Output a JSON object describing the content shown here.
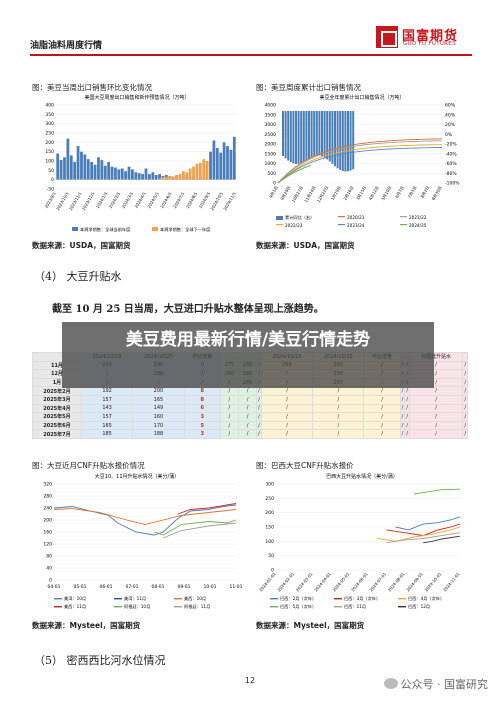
{
  "header": {
    "report_title": "油脂油料周度行情",
    "logo_cn": "国富期货",
    "logo_en": "GUO FU FUTURES"
  },
  "figures": {
    "export_sales": {
      "caption": "图：美豆当周出口销售环比变化情况",
      "source": "数据来源：USDA，国富期货"
    },
    "cumulative_export": {
      "caption": "图：美豆周度累计出口销售情况",
      "source": "数据来源：USDA，国富期货"
    },
    "cnf_us": {
      "caption": "图：大豆近月CNF升贴水报价情况",
      "source": "数据来源：Mysteel，国富期货"
    },
    "cnf_brazil": {
      "caption": "图：巴西大豆CNF升贴水报价",
      "source": "数据来源：Mysteel，国富期货"
    }
  },
  "section4": {
    "heading": "（4）   大豆升贴水",
    "lead": "截至 10 月 25 日当周，大豆进口升贴水整体呈现上涨趋势。"
  },
  "section5": {
    "heading": "（5）   密西西比河水位情况"
  },
  "banner": {
    "text": "美豆费用最新行情/美豆行情走势"
  },
  "table": {
    "header_row": [
      "",
      "2024/10/18",
      "2024/10/25",
      "环比增量",
      "",
      "",
      "",
      "2024/10/18",
      "2024/10/25",
      "环比增量",
      "",
      "",
      "阿根廷升贴水",
      ""
    ],
    "rows": [
      [
        "11月",
        "290",
        "290",
        "0",
        "275",
        "285",
        "/",
        "260",
        "260",
        "/",
        "/",
        "/",
        "/",
        "/"
      ],
      [
        "12月",
        "/",
        "288",
        "/",
        "260",
        "285",
        "/",
        "/",
        "260",
        "/",
        "/",
        "/",
        "/",
        "/"
      ],
      [
        "1月",
        "/",
        "/",
        "/",
        "/",
        "285",
        "/",
        "/",
        "257",
        "/",
        "/",
        "/",
        "/",
        "/"
      ],
      [
        "2025年2月",
        "192",
        "200",
        "8",
        "/",
        "/",
        "/",
        "/",
        "/",
        "/",
        "/",
        "/",
        "/",
        "/"
      ],
      [
        "2025年3月",
        "157",
        "165",
        "8",
        "/",
        "/",
        "/",
        "/",
        "/",
        "/",
        "/",
        "/",
        "/",
        "/"
      ],
      [
        "2025年4月",
        "143",
        "149",
        "6",
        "/",
        "/",
        "/",
        "/",
        "/",
        "/",
        "/",
        "/",
        "/",
        "/"
      ],
      [
        "2025年5月",
        "157",
        "160",
        "3",
        "/",
        "/",
        "/",
        "/",
        "/",
        "/",
        "/",
        "/",
        "/",
        "/"
      ],
      [
        "2025年6月",
        "165",
        "170",
        "5",
        "/",
        "/",
        "/",
        "/",
        "/",
        "/",
        "/",
        "/",
        "/",
        "/"
      ],
      [
        "2025年7月",
        "185",
        "188",
        "3",
        "/",
        "/",
        "/",
        "/",
        "/",
        "/",
        "/",
        "/",
        "/",
        "/"
      ]
    ]
  },
  "chart_data": [
    {
      "type": "bar",
      "title": "美国大豆周度出口销售和新作预售情况（万吨）",
      "legend": [
        "本周净销售：全球当前年度",
        "本周净销售：全球下一年度"
      ],
      "ylim": [
        -50,
        400
      ],
      "yticks": [
        "400",
        "350",
        "300",
        "250",
        "200",
        "150",
        "100",
        "50",
        "0",
        "-50"
      ],
      "xticks": [
        "2023/9/1",
        "2023/10/1",
        "2023/11/1",
        "2023/12/1",
        "2024/1/1",
        "2024/2/1",
        "2024/3/1",
        "2024/4/1",
        "2024/5/1",
        "2024/6/1",
        "2024/7/1",
        "2024/8/1",
        "2024/9/1",
        "2024/10/1",
        "2024/11/1"
      ],
      "series": [
        {
          "name": "本周净销售：全球当前年度",
          "color": "#4a7ebb",
          "values": [
            140,
            105,
            120,
            220,
            130,
            95,
            180,
            150,
            135,
            110,
            95,
            80,
            120,
            105,
            75,
            95,
            70,
            65,
            55,
            60,
            45,
            70,
            55,
            40,
            35,
            30,
            60,
            30,
            40,
            25,
            30,
            20,
            25,
            20,
            15,
            20,
            18,
            10,
            25,
            12,
            15,
            10,
            8,
            5,
            12,
            150,
            210,
            170,
            145,
            200,
            180,
            160,
            230
          ]
        },
        {
          "name": "本周净销售：全球下一年度",
          "color": "#f0a050",
          "values": [
            0,
            0,
            0,
            0,
            0,
            0,
            0,
            0,
            0,
            0,
            0,
            0,
            0,
            0,
            0,
            0,
            0,
            0,
            0,
            0,
            0,
            0,
            0,
            0,
            0,
            0,
            0,
            0,
            0,
            0,
            5,
            12,
            15,
            20,
            18,
            25,
            30,
            45,
            40,
            60,
            70,
            85,
            90,
            110,
            100,
            0,
            0,
            0,
            0,
            0,
            0,
            0,
            0
          ]
        }
      ]
    },
    {
      "type": "line",
      "title": "美豆全年度累计出口销售情况（万吨）",
      "yticks_left": [
        "4000",
        "3500",
        "3000",
        "2500",
        "2000",
        "1500",
        "1000",
        "500",
        "0"
      ],
      "yticks_right": [
        "60%",
        "40%",
        "20%",
        "0%",
        "-20%",
        "-40%",
        "-60%",
        "-80%",
        "-100%"
      ],
      "xticks": [
        "9月1日",
        "9月29日",
        "10月27日",
        "11月24日",
        "12月22日",
        "1月19日",
        "2月16日",
        "3月15日",
        "4月12日",
        "5月10日",
        "6月7日",
        "7月5日",
        "8月2日",
        "8月30日"
      ],
      "legend": [
        "累计同比（右）",
        "2020/21",
        "2021/22",
        "2022/23",
        "2023/24",
        "2024/25"
      ],
      "series": [
        {
          "name": "累计同比（右）",
          "color": "#4a7ebb"
        },
        {
          "name": "2020/21",
          "color": "#e07030"
        },
        {
          "name": "2021/22",
          "color": "#a0a0a0"
        },
        {
          "name": "2022/23",
          "color": "#e8b020"
        },
        {
          "name": "2023/24",
          "color": "#5588cc"
        },
        {
          "name": "2024/25",
          "color": "#70b050"
        }
      ]
    },
    {
      "type": "line",
      "title": "大豆10、11月升贴水情况（美分/蒲）",
      "ylim": [
        0,
        320
      ],
      "yticks": [
        "320",
        "280",
        "240",
        "200",
        "160",
        "120",
        "80",
        "40",
        "0"
      ],
      "xticks": [
        "04-01",
        "05-01",
        "06-01",
        "07-01",
        "08-01",
        "09-01",
        "10-01",
        "11-01"
      ],
      "legend": [
        "美湾：10月",
        "美湾：11月",
        "美西：10月",
        "美西：11月",
        "阿根廷：10月",
        "阿根廷：11月"
      ],
      "series": [
        {
          "name": "美湾：10月",
          "color": "#4a7ebb"
        },
        {
          "name": "美湾：11月",
          "color": "#2050a0"
        },
        {
          "name": "美西：10月",
          "color": "#e07030"
        },
        {
          "name": "美西：11月",
          "color": "#d02020"
        },
        {
          "name": "阿根廷：10月",
          "color": "#70b050"
        },
        {
          "name": "阿根廷：11月",
          "color": "#a0a0a0"
        }
      ]
    },
    {
      "type": "line",
      "title": "巴西大豆升贴水情况（美分/蒲）",
      "ylim": [
        0,
        300
      ],
      "yticks": [
        "300",
        "250",
        "200",
        "150",
        "100",
        "50",
        "0"
      ],
      "xticks": [
        "2024-01-01",
        "2024-02-01",
        "2024-03-01",
        "2024-04-01",
        "2024-05-01",
        "2024-06-01",
        "2024-07-01",
        "2024-08-01",
        "2024-09-01",
        "2024-10-01",
        "2024-11-01"
      ],
      "legend": [
        "巴西：2月（次年）",
        "巴西：3月（次年）",
        "巴西：4月（次年）",
        "巴西：5月（次年）",
        "巴西：11月",
        "巴西：12月"
      ],
      "series": [
        {
          "name": "巴西：2月（次年）",
          "color": "#4a7ebb"
        },
        {
          "name": "巴西：3月（次年）",
          "color": "#d02020"
        },
        {
          "name": "巴西：4月（次年）",
          "color": "#e8b020"
        },
        {
          "name": "巴西：5月（次年）",
          "color": "#70b050"
        },
        {
          "name": "巴西：11月",
          "color": "#a0a0a0"
        },
        {
          "name": "巴西：12月",
          "color": "#333333"
        }
      ]
    }
  ],
  "page": {
    "number": "12"
  },
  "watermark": {
    "text": "公众号 · 国富研究"
  }
}
